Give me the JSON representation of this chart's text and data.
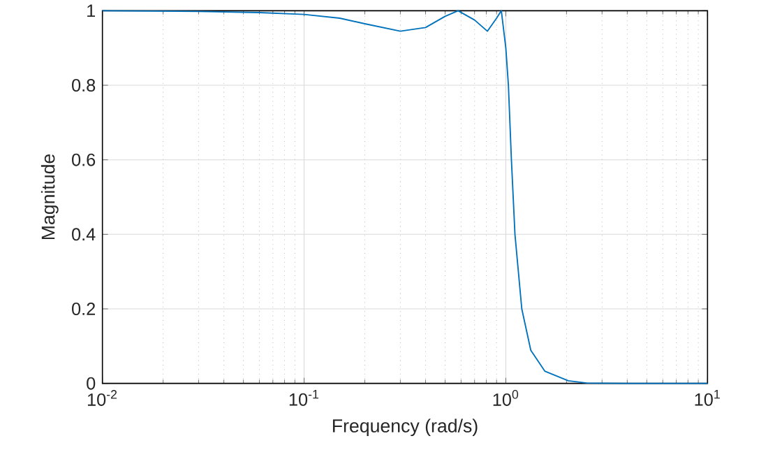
{
  "chart_data": {
    "type": "line",
    "xlabel": "Frequency (rad/s)",
    "ylabel": "Magnitude",
    "log": "x",
    "grid": true,
    "x": [
      0.01,
      0.03,
      0.06,
      0.1,
      0.15,
      0.2,
      0.3,
      0.4,
      0.5,
      0.58,
      0.7,
      0.81,
      0.9,
      0.95,
      1.0,
      1.03,
      1.066,
      1.11,
      1.2,
      1.33,
      1.56,
      2.04,
      2.52,
      4,
      10
    ],
    "series": [
      {
        "color": "#0072bd",
        "values": [
          1.0,
          0.998,
          0.995,
          0.99,
          0.98,
          0.965,
          0.945,
          0.955,
          0.985,
          1.0,
          0.975,
          0.945,
          0.98,
          1.0,
          0.9,
          0.8,
          0.6,
          0.4,
          0.2,
          0.089,
          0.033,
          0.007,
          0.001,
          0,
          0
        ]
      }
    ],
    "xlim": [
      0.01,
      10
    ],
    "ylim": [
      0,
      1
    ],
    "xticks": [
      {
        "value": 0.01,
        "label": "10$^{-2}$"
      },
      {
        "value": 0.1,
        "label": "10$^{-1}$"
      },
      {
        "value": 1,
        "label": "10$^{0}$"
      },
      {
        "value": 10,
        "label": "10$^{1}$"
      }
    ],
    "yticks": [
      0,
      0.2,
      0.4,
      0.6,
      0.8,
      1
    ]
  }
}
